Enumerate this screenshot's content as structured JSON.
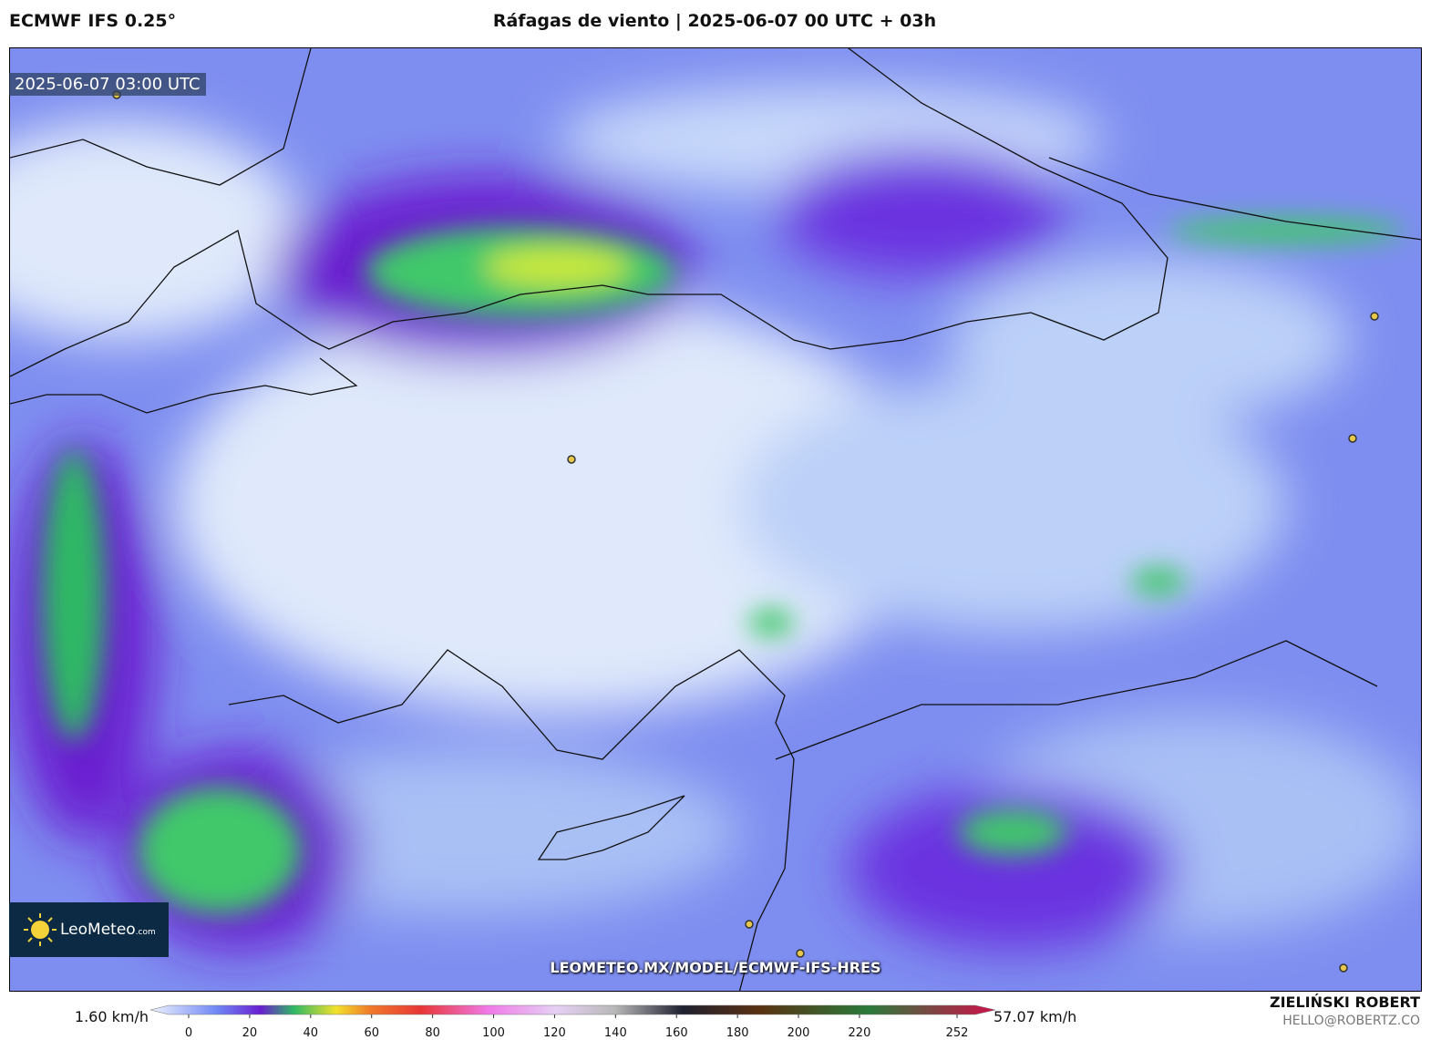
{
  "header": {
    "model": "ECMWF IFS 0.25°",
    "title": "Ráfagas de viento | 2025-06-07 00 UTC + 03h"
  },
  "map": {
    "timestamp": "2025-06-07 03:00 UTC",
    "logo": {
      "brand": "LeoMeteo",
      "suffix": ".com"
    },
    "url": "LEOMETEO.MX/MODEL/ECMWF-IFS-HRES"
  },
  "colorbar": {
    "min_label": "1.60 km/h",
    "max_label": "57.07 km/h",
    "range": [
      0,
      252
    ],
    "ticks": [
      0,
      20,
      40,
      60,
      80,
      100,
      120,
      140,
      160,
      180,
      200,
      220,
      252
    ]
  },
  "footer": {
    "author": "ZIELIŃSKI ROBERT",
    "email": "HELLO@ROBERTZ.CO"
  }
}
